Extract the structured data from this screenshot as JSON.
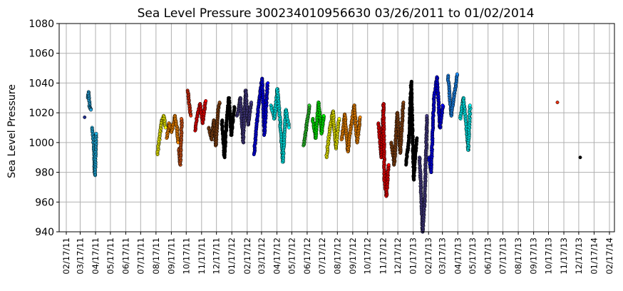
{
  "chart_data": {
    "type": "scatter",
    "title": "Sea Level Pressure 300234010956630  03/26/2011 to 01/02/2014",
    "ylabel": "Sea Level Pressure",
    "xlabel": "",
    "ylim": [
      940,
      1080
    ],
    "yticks": [
      940,
      960,
      980,
      1000,
      1020,
      1040,
      1060,
      1080
    ],
    "x_tick_labels": [
      "02/17/11",
      "03/17/11",
      "04/17/11",
      "05/17/11",
      "06/17/11",
      "07/17/11",
      "08/17/11",
      "09/17/11",
      "10/17/11",
      "11/17/11",
      "12/17/11",
      "01/17/12",
      "02/17/12",
      "03/17/12",
      "04/17/12",
      "05/17/12",
      "06/17/12",
      "07/17/12",
      "08/17/12",
      "09/17/12",
      "10/17/12",
      "11/17/12",
      "12/17/12",
      "01/17/13",
      "02/17/13",
      "03/17/13",
      "04/17/13",
      "05/17/13",
      "06/17/13",
      "07/17/13",
      "08/17/13",
      "09/17/13",
      "10/17/13",
      "11/17/13",
      "12/17/13",
      "01/17/14",
      "02/17/14"
    ],
    "grid": true,
    "legend": "none",
    "series": [
      {
        "color": "#1E2D8C",
        "points": [
          [
            "03/26/11",
            1017
          ]
        ]
      },
      {
        "color": "#29A8E0",
        "points": [
          [
            "04/01/11",
            1030
          ],
          [
            "04/03/11",
            1034
          ],
          [
            "04/05/11",
            1024
          ],
          [
            "04/08/11",
            1022
          ]
        ]
      },
      {
        "color": "#1FB4E8",
        "points": [
          [
            "04/10/11",
            1010
          ],
          [
            "04/12/11",
            1004
          ],
          [
            "04/14/11",
            995
          ],
          [
            "04/15/11",
            982
          ],
          [
            "04/16/11",
            978
          ],
          [
            "04/18/11",
            1006
          ]
        ]
      },
      {
        "color": "#FFFF00",
        "points": [
          [
            "08/20/11",
            992
          ],
          [
            "08/23/11",
            1000
          ],
          [
            "08/26/11",
            1008
          ],
          [
            "08/29/11",
            1015
          ],
          [
            "09/02/11",
            1018
          ],
          [
            "09/05/11",
            1010
          ]
        ]
      },
      {
        "color": "#FF8C00",
        "points": [
          [
            "09/08/11",
            1003
          ],
          [
            "09/12/11",
            1013
          ],
          [
            "09/18/11",
            1007
          ],
          [
            "09/24/11",
            1018
          ],
          [
            "09/28/11",
            1010
          ],
          [
            "10/01/11",
            1000
          ]
        ]
      },
      {
        "color": "#E05A1A",
        "points": [
          [
            "10/02/11",
            996
          ],
          [
            "10/05/11",
            985
          ],
          [
            "10/08/11",
            1016
          ]
        ]
      },
      {
        "color": "#E83010",
        "points": [
          [
            "10/20/11",
            1035
          ],
          [
            "10/23/11",
            1026
          ],
          [
            "10/26/11",
            1018
          ]
        ]
      },
      {
        "color": "#FF0000",
        "points": [
          [
            "11/04/11",
            1008
          ],
          [
            "11/09/11",
            1020
          ],
          [
            "11/14/11",
            1026
          ],
          [
            "11/19/11",
            1013
          ],
          [
            "11/25/11",
            1028
          ]
        ]
      },
      {
        "color": "#8B4513",
        "points": [
          [
            "12/01/11",
            1010
          ],
          [
            "12/07/11",
            1002
          ],
          [
            "12/12/11",
            1015
          ],
          [
            "12/16/11",
            998
          ],
          [
            "12/20/11",
            1022
          ],
          [
            "12/24/11",
            1027
          ]
        ]
      },
      {
        "color": "#000000",
        "points": [
          [
            "12/28/11",
            1015
          ],
          [
            "01/02/12",
            990
          ],
          [
            "01/06/12",
            1012
          ],
          [
            "01/11/12",
            1030
          ],
          [
            "01/16/12",
            1005
          ],
          [
            "01/22/12",
            1024
          ]
        ]
      },
      {
        "color": "#483D8B",
        "points": [
          [
            "01/28/12",
            1018
          ],
          [
            "02/03/12",
            1030
          ],
          [
            "02/09/12",
            1000
          ],
          [
            "02/14/12",
            1035
          ],
          [
            "02/19/12",
            1012
          ],
          [
            "02/25/12",
            1027
          ]
        ]
      },
      {
        "color": "#0000FF",
        "points": [
          [
            "03/02/12",
            992
          ],
          [
            "03/08/12",
            1015
          ],
          [
            "03/13/12",
            1030
          ],
          [
            "03/18/12",
            1043
          ],
          [
            "03/23/12",
            1005
          ],
          [
            "03/29/12",
            1040
          ]
        ]
      },
      {
        "color": "#00FFFF",
        "points": [
          [
            "04/05/12",
            1025
          ],
          [
            "04/12/12",
            1016
          ],
          [
            "04/18/12",
            1036
          ],
          [
            "04/24/12",
            1012
          ],
          [
            "04/29/12",
            987
          ],
          [
            "05/05/12",
            1022
          ],
          [
            "05/12/12",
            1010
          ]
        ]
      },
      {
        "color": "#2ECC2E",
        "points": [
          [
            "06/10/12",
            998
          ],
          [
            "06/16/12",
            1012
          ],
          [
            "06/22/12",
            1025
          ]
        ]
      },
      {
        "color": "#00FF00",
        "points": [
          [
            "06/28/12",
            1016
          ],
          [
            "07/04/12",
            1003
          ],
          [
            "07/10/12",
            1027
          ],
          [
            "07/16/12",
            1006
          ],
          [
            "07/21/12",
            1018
          ]
        ]
      },
      {
        "color": "#FFFF00",
        "points": [
          [
            "07/26/12",
            990
          ],
          [
            "08/02/12",
            1010
          ],
          [
            "08/08/12",
            1021
          ],
          [
            "08/14/12",
            996
          ],
          [
            "08/20/12",
            1016
          ]
        ]
      },
      {
        "color": "#FF8C00",
        "points": [
          [
            "08/26/12",
            1002
          ],
          [
            "09/01/12",
            1019
          ],
          [
            "09/07/12",
            994
          ],
          [
            "09/14/12",
            1012
          ],
          [
            "09/20/12",
            1025
          ],
          [
            "09/26/12",
            1000
          ],
          [
            "10/02/12",
            1017
          ]
        ]
      },
      {
        "color": "#FF0000",
        "points": [
          [
            "11/08/12",
            1013
          ],
          [
            "11/14/12",
            990
          ],
          [
            "11/18/12",
            1026
          ],
          [
            "11/20/12",
            975
          ],
          [
            "11/24/12",
            964
          ],
          [
            "11/28/12",
            985
          ]
        ]
      },
      {
        "color": "#8B4513",
        "points": [
          [
            "12/04/12",
            1000
          ],
          [
            "12/10/12",
            985
          ],
          [
            "12/16/12",
            1020
          ],
          [
            "12/22/12",
            993
          ],
          [
            "12/28/12",
            1027
          ]
        ]
      },
      {
        "color": "#000000",
        "points": [
          [
            "01/02/13",
            985
          ],
          [
            "01/08/13",
            1000
          ],
          [
            "01/13/13",
            1041
          ],
          [
            "01/18/13",
            975
          ],
          [
            "01/24/13",
            1003
          ]
        ]
      },
      {
        "color": "#483D8B",
        "points": [
          [
            "01/30/13",
            990
          ],
          [
            "02/05/13",
            940
          ],
          [
            "02/09/13",
            960
          ],
          [
            "02/14/13",
            1018
          ]
        ]
      },
      {
        "color": "#0000FF",
        "points": [
          [
            "02/18/13",
            990
          ],
          [
            "02/22/13",
            980
          ],
          [
            "02/28/13",
            1030
          ],
          [
            "03/06/13",
            1044
          ],
          [
            "03/12/13",
            1010
          ],
          [
            "03/18/13",
            1025
          ]
        ]
      },
      {
        "color": "#1E90FF",
        "points": [
          [
            "03/28/13",
            1045
          ],
          [
            "04/04/13",
            1018
          ],
          [
            "04/10/13",
            1033
          ],
          [
            "04/16/13",
            1046
          ]
        ]
      },
      {
        "color": "#00FFFF",
        "points": [
          [
            "04/22/13",
            1016
          ],
          [
            "04/28/13",
            1030
          ],
          [
            "05/04/13",
            1012
          ],
          [
            "05/08/13",
            995
          ],
          [
            "05/12/13",
            1025
          ]
        ]
      },
      {
        "color": "#E83010",
        "points": [
          [
            "11/04/13",
            1027
          ]
        ]
      },
      {
        "color": "#000000",
        "points": [
          [
            "12/20/13",
            990
          ]
        ]
      }
    ]
  }
}
